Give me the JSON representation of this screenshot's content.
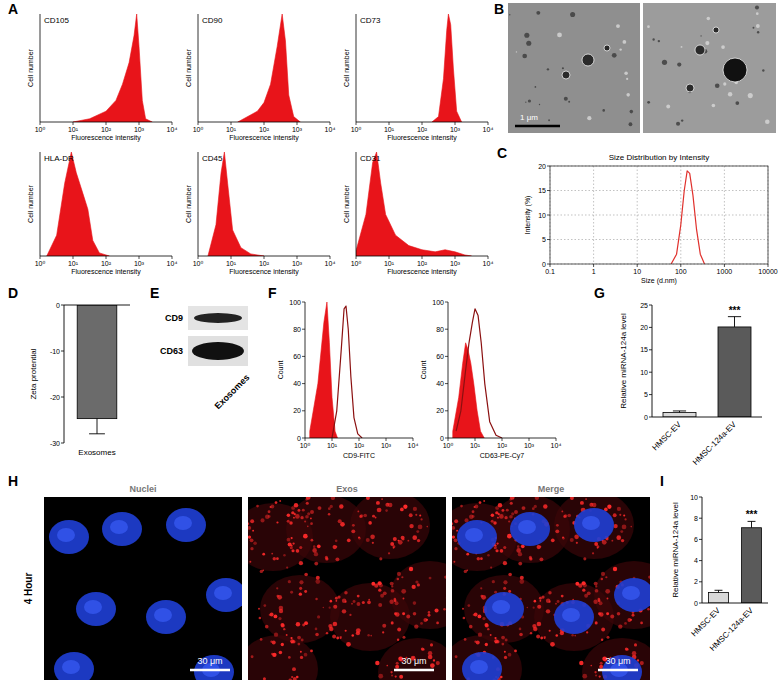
{
  "panel_labels": [
    "A",
    "B",
    "C",
    "D",
    "E",
    "F",
    "G",
    "H",
    "I"
  ],
  "chart_data": [
    {
      "type": "area",
      "title": "CD105",
      "x_label": "Fluorescence intensity",
      "y_label": "Cell number",
      "log": "x",
      "xlim": [
        1,
        10000
      ],
      "xticks": [
        {
          "value": 1,
          "label": "10⁰"
        },
        {
          "value": 10,
          "label": "10¹"
        },
        {
          "value": 100,
          "label": "10²"
        },
        {
          "value": 1000,
          "label": "10³"
        },
        {
          "value": 10000,
          "label": "10⁴"
        }
      ],
      "ylim": [
        0,
        100
      ],
      "tick_labels": "x",
      "series": [
        {
          "color": "#e8141a",
          "x": [
            10,
            32,
            100,
            200,
            316,
            501,
            708,
            851,
            1000,
            1259,
            1585,
            2512
          ],
          "values": [
            0,
            3,
            10,
            20,
            35,
            55,
            80,
            100,
            70,
            20,
            3,
            0
          ]
        }
      ]
    },
    {
      "type": "area",
      "title": "CD90",
      "x_label": "Fluorescence intensity",
      "y_label": "Cell number",
      "log": "x",
      "xlim": [
        1,
        10000
      ],
      "xticks": [
        {
          "value": 1,
          "label": "10⁰"
        },
        {
          "value": 10,
          "label": "10¹"
        },
        {
          "value": 100,
          "label": "10²"
        },
        {
          "value": 1000,
          "label": "10³"
        },
        {
          "value": 10000,
          "label": "10⁴"
        }
      ],
      "ylim": [
        0,
        100
      ],
      "tick_labels": "x",
      "series": [
        {
          "color": "#e8141a",
          "x": [
            16,
            63,
            100,
            158,
            251,
            355,
            447,
            562,
            794,
            1259
          ],
          "values": [
            0,
            10,
            18,
            35,
            70,
            100,
            75,
            25,
            5,
            0
          ]
        }
      ]
    },
    {
      "type": "area",
      "title": "CD73",
      "x_label": "Fluorescence intensity",
      "y_label": "Cell number",
      "log": "x",
      "xlim": [
        1,
        10000
      ],
      "xticks": [
        {
          "value": 1,
          "label": "10⁰"
        },
        {
          "value": 10,
          "label": "10¹"
        },
        {
          "value": 100,
          "label": "10²"
        },
        {
          "value": 1000,
          "label": "10³"
        },
        {
          "value": 10000,
          "label": "10⁴"
        }
      ],
      "ylim": [
        0,
        100
      ],
      "tick_labels": "x",
      "series": [
        {
          "color": "#e8141a",
          "x": [
            200,
            316,
            447,
            562,
            631,
            741,
            891,
            1122,
            1585
          ],
          "values": [
            0,
            5,
            40,
            85,
            100,
            90,
            50,
            10,
            0
          ]
        }
      ]
    },
    {
      "type": "area",
      "title": "HLA-DR",
      "x_label": "Fluorescence intensity",
      "y_label": "Cell number",
      "log": "x",
      "xlim": [
        1,
        10000
      ],
      "xticks": [
        {
          "value": 1,
          "label": "10⁰"
        },
        {
          "value": 10,
          "label": "10¹"
        },
        {
          "value": 100,
          "label": "10²"
        },
        {
          "value": 1000,
          "label": "10³"
        },
        {
          "value": 10000,
          "label": "10⁴"
        }
      ],
      "ylim": [
        0,
        100
      ],
      "tick_labels": "x",
      "series": [
        {
          "color": "#e8141a",
          "x": [
            1.6,
            3.2,
            5.6,
            8.9,
            12.6,
            20,
            28.2,
            39.8,
            63.1,
            125.9
          ],
          "values": [
            0,
            20,
            70,
            100,
            80,
            60,
            45,
            15,
            3,
            0
          ]
        }
      ]
    },
    {
      "type": "area",
      "title": "CD45",
      "x_label": "Fluorescence intensity",
      "y_label": "Cell number",
      "log": "x",
      "xlim": [
        1,
        10000
      ],
      "xticks": [
        {
          "value": 1,
          "label": "10⁰"
        },
        {
          "value": 10,
          "label": "10¹"
        },
        {
          "value": 100,
          "label": "10²"
        },
        {
          "value": 1000,
          "label": "10³"
        },
        {
          "value": 10000,
          "label": "10⁴"
        }
      ],
      "ylim": [
        0,
        100
      ],
      "tick_labels": "x",
      "series": [
        {
          "color": "#e8141a",
          "x": [
            2,
            3.5,
            5,
            6.3,
            7.9,
            11.2,
            20,
            39.8,
            100
          ],
          "values": [
            0,
            30,
            80,
            100,
            70,
            25,
            8,
            2,
            0
          ]
        }
      ]
    },
    {
      "type": "area",
      "title": "CD31",
      "x_label": "Fluorescence intensity",
      "y_label": "Cell number",
      "log": "x",
      "xlim": [
        1,
        10000
      ],
      "xticks": [
        {
          "value": 1,
          "label": "10⁰"
        },
        {
          "value": 10,
          "label": "10¹"
        },
        {
          "value": 100,
          "label": "10²"
        },
        {
          "value": 1000,
          "label": "10³"
        },
        {
          "value": 10000,
          "label": "10⁴"
        }
      ],
      "ylim": [
        0,
        100
      ],
      "tick_labels": "x",
      "series": [
        {
          "color": "#e8141a",
          "x": [
            1,
            2,
            3.2,
            4.2,
            5.6,
            7.9,
            15.8,
            39.8,
            100,
            251,
            501,
            1000,
            1995,
            3162
          ],
          "values": [
            5,
            40,
            90,
            100,
            70,
            40,
            20,
            10,
            6,
            4,
            6,
            4,
            1,
            0
          ]
        }
      ]
    },
    {
      "type": "line",
      "title": "Size Distribution by Intensity",
      "x_label": "Size (d.nm)",
      "y_label": "Intensity (%)",
      "log": "x",
      "grid": true,
      "xlim": [
        0.1,
        10000
      ],
      "xticks": [
        0.1,
        1,
        10,
        100,
        1000,
        10000
      ],
      "ylim": [
        0,
        20
      ],
      "yticks": [
        0,
        5,
        10,
        15,
        20
      ],
      "series": [
        {
          "color": "#e0302c",
          "x": [
            60,
            80,
            100,
            120,
            140,
            160,
            190,
            230,
            280,
            350
          ],
          "values": [
            0,
            2,
            8,
            15,
            19,
            18.5,
            14,
            7,
            2,
            0
          ]
        }
      ]
    },
    {
      "type": "bar",
      "y_label": "Zeta protential",
      "categories": [
        "Exosomes"
      ],
      "values": [
        -24.7
      ],
      "errors": [
        3.3
      ],
      "colors": [
        "#6b6b6b"
      ],
      "ylim": [
        -30,
        0
      ],
      "yticks": [
        -30,
        -20,
        -10,
        0
      ]
    },
    {
      "type": "area",
      "x_label": "CD9-FITC",
      "y_label": "Count",
      "log": "x",
      "xlim": [
        1,
        10000
      ],
      "xticks": [
        {
          "value": 1,
          "label": "10⁰"
        },
        {
          "value": 10,
          "label": "10¹"
        },
        {
          "value": 100,
          "label": "10²"
        },
        {
          "value": 1000,
          "label": "10³"
        },
        {
          "value": 10000,
          "label": "10⁴"
        }
      ],
      "ylim": [
        0,
        100
      ],
      "yticks": [
        0,
        20,
        40,
        60,
        80,
        100
      ],
      "series": [
        {
          "type": "area",
          "color": "#e8141a",
          "x": [
            1.5,
            3,
            5,
            6.5,
            8,
            10,
            13,
            16
          ],
          "values": [
            5,
            40,
            85,
            100,
            70,
            30,
            5,
            0
          ]
        },
        {
          "type": "line",
          "color": "#8b1010",
          "x": [
            10,
            15,
            22,
            28,
            33,
            40,
            50,
            65,
            90,
            130
          ],
          "values": [
            0,
            20,
            65,
            95,
            97,
            80,
            45,
            15,
            3,
            0
          ]
        }
      ]
    },
    {
      "type": "area",
      "x_label": "CD63-PE-Cy7",
      "y_label": "Count",
      "log": "x",
      "xlim": [
        1,
        10000
      ],
      "xticks": [
        {
          "value": 1,
          "label": "10⁰"
        },
        {
          "value": 10,
          "label": "10¹"
        },
        {
          "value": 100,
          "label": "10²"
        },
        {
          "value": 1000,
          "label": "10³"
        },
        {
          "value": 10000,
          "label": "10⁴"
        }
      ],
      "ylim": [
        0,
        100
      ],
      "yticks": [
        0,
        20,
        40,
        60,
        80,
        100
      ],
      "series": [
        {
          "type": "area",
          "color": "#e8141a",
          "x": [
            1.5,
            2.5,
            3.5,
            4.5,
            5.5,
            7,
            9,
            12,
            16,
            22
          ],
          "values": [
            5,
            30,
            55,
            70,
            65,
            55,
            40,
            20,
            5,
            0
          ]
        },
        {
          "type": "line",
          "color": "#8b1010",
          "x": [
            2,
            3,
            4.5,
            6,
            8,
            10,
            13,
            17,
            23,
            35,
            60,
            100
          ],
          "values": [
            5,
            20,
            50,
            70,
            85,
            95,
            90,
            70,
            40,
            12,
            2,
            0
          ]
        }
      ]
    },
    {
      "type": "bar",
      "y_label": "Relative miRNA-124a level",
      "categories": [
        "HMSC-EV",
        "HMSC-124a-EV"
      ],
      "values": [
        1.0,
        20.1
      ],
      "errors": [
        0.35,
        2.3
      ],
      "colors": [
        "#d9d9d9",
        "#5a5a5a"
      ],
      "ylim": [
        0,
        25
      ],
      "yticks": [
        0,
        5,
        10,
        15,
        20,
        25
      ],
      "annotations": [
        {
          "text": "***",
          "category": "HMSC-124a-EV"
        }
      ]
    },
    {
      "type": "bar",
      "y_label": "Relative miRNA-124a level",
      "categories": [
        "HMSC-EV",
        "HMSC-124a-EV"
      ],
      "values": [
        1.0,
        7.1
      ],
      "errors": [
        0.2,
        0.6
      ],
      "colors": [
        "#d9d9d9",
        "#5a5a5a"
      ],
      "ylim": [
        0,
        10
      ],
      "yticks": [
        0,
        2,
        4,
        6,
        8,
        10
      ],
      "annotations": [
        {
          "text": "***",
          "category": "HMSC-124a-EV"
        }
      ]
    }
  ],
  "images": {
    "B": {
      "scale_bar": "1 μm"
    },
    "E": {
      "bands": [
        "CD9",
        "CD63"
      ],
      "sample": "Exosomes"
    },
    "H": {
      "row_label": "4 Hour",
      "channels": [
        "Nuclei",
        "Exos",
        "Merge"
      ],
      "scale_bar": "30 μm"
    }
  }
}
